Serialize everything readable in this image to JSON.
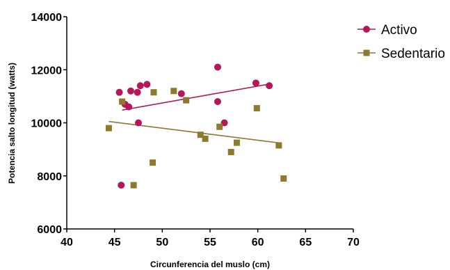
{
  "chart_data": {
    "type": "scatter",
    "title": "",
    "xlabel": "Circunferencia del muslo (cm)",
    "ylabel": "Potencia salto longitud (watts)",
    "xlim": [
      40,
      70
    ],
    "ylim": [
      6000,
      14000
    ],
    "xticks": [
      40,
      45,
      50,
      55,
      60,
      65,
      70
    ],
    "yticks": [
      6000,
      8000,
      10000,
      12000,
      14000
    ],
    "grid": false,
    "legend_position": "top-right",
    "series": [
      {
        "name": "Activo",
        "marker": "circle",
        "color": "#b5175a",
        "points": [
          [
            45.5,
            11150
          ],
          [
            45.7,
            7650
          ],
          [
            46.1,
            10700
          ],
          [
            46.5,
            10600
          ],
          [
            46.7,
            11200
          ],
          [
            47.4,
            11150
          ],
          [
            47.5,
            10000
          ],
          [
            47.7,
            11400
          ],
          [
            48.4,
            11450
          ],
          [
            52.0,
            11100
          ],
          [
            55.8,
            12100
          ],
          [
            55.8,
            10800
          ],
          [
            56.5,
            10000
          ],
          [
            59.8,
            11500
          ],
          [
            61.2,
            11400
          ]
        ],
        "fit": [
          [
            45.8,
            10480
          ],
          [
            61.2,
            11460
          ]
        ]
      },
      {
        "name": "Sedentario",
        "marker": "square",
        "color": "#8c7a2e",
        "points": [
          [
            44.4,
            9800
          ],
          [
            45.8,
            10800
          ],
          [
            47.0,
            7650
          ],
          [
            49.0,
            8500
          ],
          [
            49.1,
            11150
          ],
          [
            51.2,
            11200
          ],
          [
            52.5,
            10850
          ],
          [
            54.0,
            9550
          ],
          [
            54.5,
            9400
          ],
          [
            56.0,
            9850
          ],
          [
            57.2,
            8900
          ],
          [
            57.8,
            9250
          ],
          [
            59.9,
            10550
          ],
          [
            62.2,
            9150
          ],
          [
            62.7,
            7900
          ]
        ],
        "fit": [
          [
            44.4,
            10050
          ],
          [
            62.5,
            9230
          ]
        ]
      }
    ]
  }
}
